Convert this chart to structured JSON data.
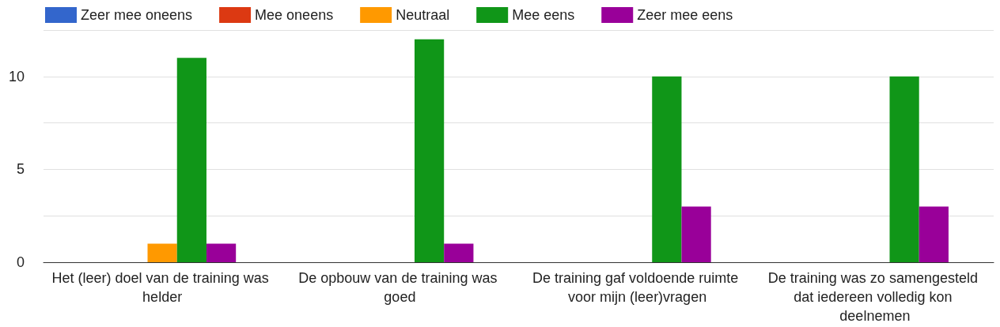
{
  "chart_data": {
    "type": "bar",
    "categories": [
      "Het (leer) doel van de training was helder",
      "De opbouw van de training was goed",
      "De training gaf voldoende ruimte voor mijn (leer)vragen",
      "De training was zo samengesteld dat iedereen volledig kon deelnemen"
    ],
    "series": [
      {
        "name": "Zeer mee oneens",
        "color": "#3366cc",
        "values": [
          0,
          0,
          0,
          0
        ]
      },
      {
        "name": "Mee oneens",
        "color": "#dc3912",
        "values": [
          0,
          0,
          0,
          0
        ]
      },
      {
        "name": "Neutraal",
        "color": "#ff9900",
        "values": [
          1,
          0,
          0,
          0
        ]
      },
      {
        "name": "Mee eens",
        "color": "#109618",
        "values": [
          11,
          12,
          10,
          10
        ]
      },
      {
        "name": "Zeer mee eens",
        "color": "#990099",
        "values": [
          1,
          1,
          3,
          3
        ]
      }
    ],
    "ylim": [
      0,
      12.5
    ],
    "yticks": [
      0,
      {
        "value": 2.5,
        "label": null
      },
      5,
      {
        "value": 7.5,
        "label": null
      },
      10,
      {
        "value": 12.5,
        "label": null
      }
    ],
    "grid": "y",
    "legend": "top left"
  }
}
